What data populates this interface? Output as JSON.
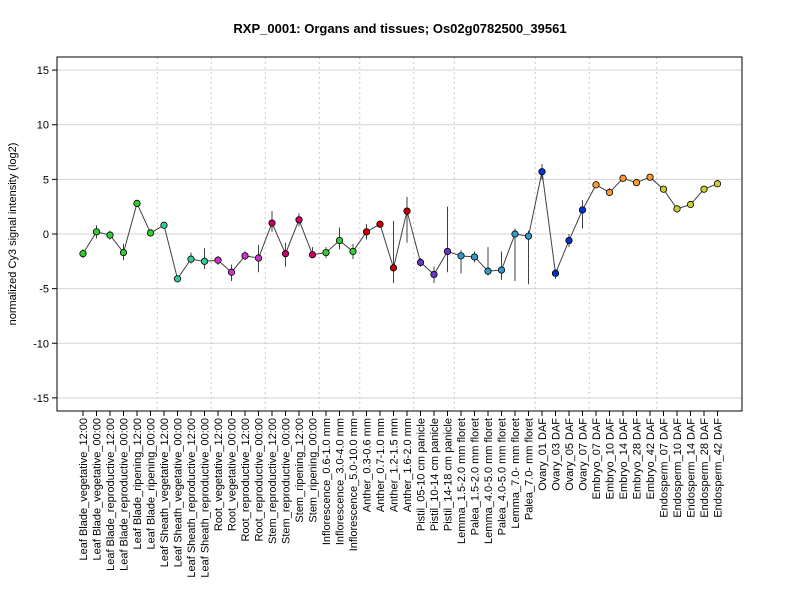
{
  "chart_data": {
    "type": "line",
    "title": "RXP_0001: Organs and tissues; Os02g0782500_39561",
    "xlabel": "",
    "ylabel": "normalized Cy3 signal intensity (log2)",
    "ylim": [
      -16.2,
      16.2
    ],
    "yticks": [
      -15,
      -10,
      -5,
      0,
      5,
      10,
      15
    ],
    "grid": true,
    "colors": {
      "line": "#404040",
      "hgrid": "#d3d3d3",
      "vgrid": "#c8c8c8",
      "errorbar": "#404040",
      "frame": "#000000"
    },
    "categories": [
      "Leaf Blade_vegetative_12:00",
      "Leaf Blade_vegetative_00:00",
      "Leaf Blade_reproductive_12:00",
      "Leaf Blade_reproductive_00:00",
      "Leaf Blade_ripening_12:00",
      "Leaf Blade_ripening_00:00",
      "Leaf Sheath_vegetative_12:00",
      "Leaf Sheath_vegetative_00:00",
      "Leaf Sheath_reproductive_12:00",
      "Leaf Sheath_reproductive_00:00",
      "Root_vegetative_12:00",
      "Root_vegetative_00:00",
      "Root_reproductive_12:00",
      "Root_reproductive_00:00",
      "Stem_reproductive_12:00",
      "Stem_reproductive_00:00",
      "Stem_ripening_12:00",
      "Stem_ripening_00:00",
      "Inflorescence_0.6-1.0 mm",
      "Inflorescence_3.0-4.0 mm",
      "Inflorescence_5.0-10.0 mm",
      "Anther_0.3-0.6 mm",
      "Anther_0.7-1.0 mm",
      "Anther_1.2-1.5 mm",
      "Anther_1.6-2.0 mm",
      "Pistil_05-10 cm panicle",
      "Pistil_10-14 cm panicle",
      "Pistil_14-18 cm panicle",
      "Lemma_1.5-2.0 mm floret",
      "Palea_1.5-2.0 mm floret",
      "Lemma_4.0-5.0 mm floret",
      "Palea_4.0-5.0 mm floret",
      "Lemma_7.0- mm floret",
      "Palea_7.0- mm floret",
      "Ovary_01 DAF",
      "Ovary_03 DAF",
      "Ovary_05 DAF",
      "Ovary_07 DAF",
      "Embryo_07 DAF",
      "Embryo_10 DAF",
      "Embryo_14 DAF",
      "Embryo_28 DAF",
      "Embryo_42 DAF",
      "Endosperm_07 DAF",
      "Endosperm_10 DAF",
      "Endosperm_14 DAF",
      "Endosperm_28 DAF",
      "Endosperm_42 DAF"
    ],
    "series": [
      {
        "values": [
          -1.8,
          0.2,
          -0.1,
          -1.7,
          2.8,
          0.1,
          0.8,
          -4.1,
          -2.3,
          -2.5,
          -2.4,
          -3.5,
          -2.0,
          -2.2,
          1.0,
          -1.8,
          1.3,
          -1.9,
          -1.7,
          -0.6,
          -1.6,
          0.2,
          0.9,
          -3.1,
          2.1,
          -2.6,
          -3.7,
          -1.6,
          -2.0,
          -2.1,
          -3.4,
          -3.3,
          0.0,
          -0.2,
          5.7,
          -3.6,
          -0.6,
          2.2,
          4.5,
          3.8,
          5.1,
          4.7,
          5.2,
          4.1,
          2.3,
          2.7,
          4.1,
          4.6
        ],
        "err_low": [
          -2.2,
          -0.4,
          -0.5,
          -2.4,
          2.6,
          -0.2,
          0.6,
          -4.3,
          -2.7,
          -3.2,
          -2.8,
          -4.3,
          -2.4,
          -3.5,
          0.2,
          -3.0,
          0.7,
          -2.2,
          -2.2,
          -1.4,
          -2.3,
          -0.5,
          0.6,
          -4.5,
          -0.8,
          -3.0,
          -4.5,
          -3.5,
          -3.6,
          -2.6,
          -3.8,
          -4.2,
          -4.3,
          -4.6,
          5.0,
          -4.1,
          -1.2,
          0.5,
          4.2,
          3.5,
          4.8,
          4.4,
          4.9,
          3.8,
          2.0,
          2.4,
          3.8,
          4.3
        ],
        "err_high": [
          -1.4,
          0.8,
          0.3,
          -0.9,
          3.0,
          0.4,
          1.0,
          -3.9,
          -1.7,
          -1.3,
          -2.0,
          -2.8,
          -1.6,
          -1.0,
          2.1,
          -0.8,
          1.9,
          -1.2,
          -1.2,
          0.6,
          -0.9,
          0.9,
          1.2,
          1.2,
          3.4,
          -2.2,
          -3.0,
          2.5,
          -1.5,
          -1.6,
          -1.2,
          -1.6,
          0.5,
          0.3,
          6.4,
          -3.2,
          0.0,
          3.1,
          4.8,
          4.2,
          5.4,
          5.0,
          5.5,
          4.4,
          2.6,
          3.0,
          4.4,
          4.9
        ]
      }
    ],
    "point_colors": [
      "#33cc33",
      "#33cc33",
      "#33cc33",
      "#33cc33",
      "#33cc33",
      "#33cc33",
      "#33cc99",
      "#33cc99",
      "#33cc99",
      "#33cc99",
      "#cc33cc",
      "#cc33cc",
      "#cc33cc",
      "#cc33cc",
      "#cc0066",
      "#cc0066",
      "#cc0066",
      "#cc0066",
      "#33cc33",
      "#33cc33",
      "#33cc33",
      "#cc0000",
      "#cc0000",
      "#cc0000",
      "#cc0000",
      "#6633cc",
      "#6633cc",
      "#6633cc",
      "#3399cc",
      "#3399cc",
      "#3399cc",
      "#3399cc",
      "#3399cc",
      "#3399cc",
      "#0033cc",
      "#0033cc",
      "#0033cc",
      "#0033cc",
      "#ff9933",
      "#ff9933",
      "#ff9933",
      "#ff9933",
      "#ff9933",
      "#cccc33",
      "#cccc33",
      "#cccc33",
      "#cccc33",
      "#cccc33"
    ],
    "group_boundaries_after": [
      5,
      9,
      13,
      17,
      20,
      24,
      27,
      33,
      37,
      42
    ]
  }
}
